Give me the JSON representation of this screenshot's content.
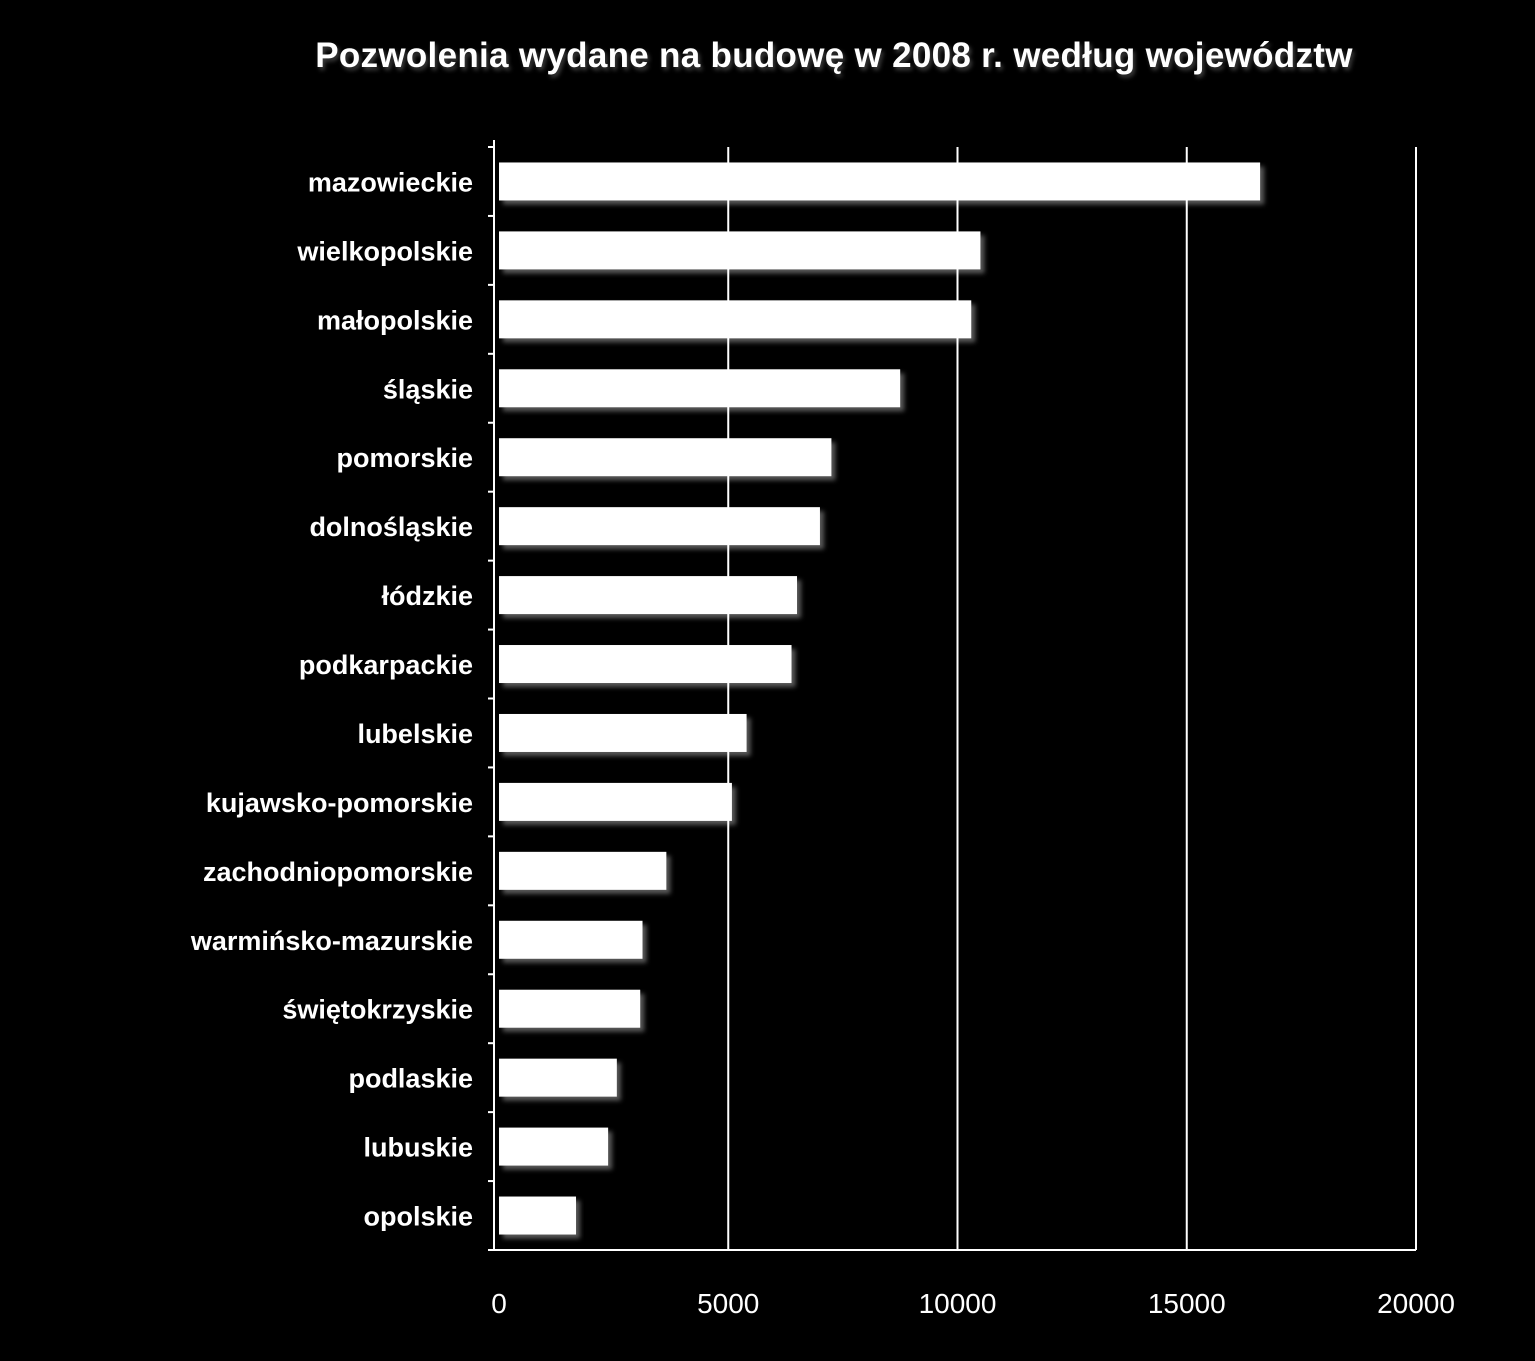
{
  "chart_data": {
    "type": "bar",
    "orientation": "horizontal",
    "title": "Pozwolenia wydane  na budowę  w 2008  r. według  województw",
    "xlabel": "",
    "ylabel": "",
    "categories": [
      "mazowieckie",
      "wielkopolskie",
      "małopolskie",
      "śląskie",
      "pomorskie",
      "dolnośląskie",
      "łódzkie",
      "podkarpackie",
      "lubelskie",
      "kujawsko-pomorskie",
      "zachodniopomorskie",
      "warmińsko-mazurskie",
      "świętokrzyskie",
      "podlaskie",
      "lubuskie",
      "opolskie"
    ],
    "values": [
      16600,
      10500,
      10300,
      8750,
      7250,
      7000,
      6500,
      6380,
      5400,
      5080,
      3650,
      3130,
      3080,
      2570,
      2380,
      1680
    ],
    "xlim": [
      0,
      20000
    ],
    "xticks": [
      "0",
      "5000",
      "10000",
      "15000",
      "20000"
    ],
    "grid": "vertical",
    "legend": "none",
    "colors": {
      "background": "#000000",
      "bar": "#ffffff",
      "grid": "#ffffff",
      "text": "#ffffff"
    }
  }
}
